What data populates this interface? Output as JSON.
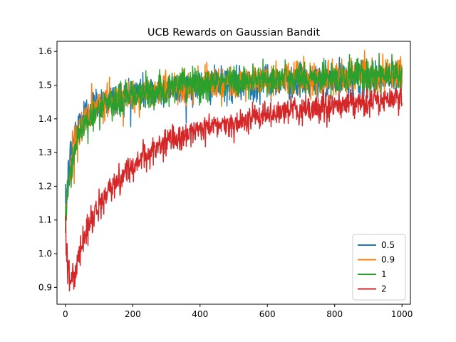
{
  "chart_data": {
    "type": "line",
    "title": "UCB Rewards on Gaussian Bandit",
    "xlabel": "",
    "ylabel": "",
    "xlim": [
      -25,
      1025
    ],
    "ylim": [
      0.85,
      1.63
    ],
    "xticks": [
      0,
      200,
      400,
      600,
      800,
      1000
    ],
    "yticks": [
      0.9,
      1.0,
      1.1,
      1.2,
      1.3,
      1.4,
      1.5,
      1.6
    ],
    "x_tick_labels": [
      "0",
      "200",
      "400",
      "600",
      "800",
      "1000"
    ],
    "y_tick_labels": [
      "0.9",
      "1.0",
      "1.1",
      "1.2",
      "1.3",
      "1.4",
      "1.5",
      "1.6"
    ],
    "grid": false,
    "legend_position": "bottom-right",
    "n_steps": 1000,
    "series": [
      {
        "name": "0.5",
        "color": "#1f77b4",
        "x": [
          0,
          5,
          10,
          20,
          30,
          40,
          50,
          60,
          80,
          100,
          125,
          150,
          175,
          200,
          250,
          300,
          350,
          400,
          450,
          500,
          550,
          600,
          650,
          700,
          750,
          800,
          850,
          900,
          950,
          1000
        ],
        "y": [
          1.11,
          1.2,
          1.24,
          1.32,
          1.36,
          1.39,
          1.41,
          1.42,
          1.44,
          1.45,
          1.46,
          1.46,
          1.47,
          1.48,
          1.48,
          1.49,
          1.49,
          1.5,
          1.5,
          1.5,
          1.5,
          1.51,
          1.51,
          1.51,
          1.51,
          1.51,
          1.52,
          1.52,
          1.52,
          1.52
        ],
        "noise": 0.025
      },
      {
        "name": "0.9",
        "color": "#ff7f0e",
        "x": [
          0,
          5,
          10,
          20,
          30,
          40,
          50,
          60,
          80,
          100,
          125,
          150,
          175,
          200,
          250,
          300,
          350,
          400,
          450,
          500,
          550,
          600,
          650,
          700,
          750,
          800,
          850,
          900,
          950,
          1000
        ],
        "y": [
          1.12,
          1.18,
          1.22,
          1.29,
          1.33,
          1.36,
          1.38,
          1.4,
          1.42,
          1.43,
          1.45,
          1.46,
          1.47,
          1.47,
          1.48,
          1.49,
          1.5,
          1.5,
          1.51,
          1.51,
          1.51,
          1.51,
          1.52,
          1.52,
          1.52,
          1.52,
          1.53,
          1.53,
          1.53,
          1.53
        ],
        "noise": 0.025
      },
      {
        "name": "1",
        "color": "#2ca02c",
        "x": [
          0,
          5,
          10,
          20,
          30,
          40,
          50,
          60,
          80,
          100,
          125,
          150,
          175,
          200,
          250,
          300,
          350,
          400,
          450,
          500,
          550,
          600,
          650,
          700,
          750,
          800,
          850,
          900,
          950,
          1000
        ],
        "y": [
          1.12,
          1.17,
          1.21,
          1.28,
          1.32,
          1.35,
          1.37,
          1.39,
          1.41,
          1.43,
          1.44,
          1.45,
          1.46,
          1.47,
          1.48,
          1.49,
          1.5,
          1.5,
          1.51,
          1.51,
          1.51,
          1.52,
          1.52,
          1.52,
          1.52,
          1.52,
          1.53,
          1.53,
          1.53,
          1.53
        ],
        "noise": 0.025
      },
      {
        "name": "2",
        "color": "#d62728",
        "x": [
          0,
          3,
          6,
          10,
          15,
          20,
          25,
          30,
          40,
          50,
          60,
          75,
          100,
          125,
          150,
          175,
          200,
          250,
          300,
          350,
          400,
          450,
          500,
          550,
          600,
          650,
          700,
          750,
          800,
          850,
          900,
          950,
          1000
        ],
        "y": [
          1.07,
          1.04,
          0.99,
          0.94,
          0.92,
          0.92,
          0.93,
          0.95,
          0.99,
          1.03,
          1.06,
          1.1,
          1.14,
          1.18,
          1.21,
          1.24,
          1.26,
          1.3,
          1.33,
          1.35,
          1.37,
          1.38,
          1.39,
          1.4,
          1.41,
          1.42,
          1.43,
          1.43,
          1.44,
          1.44,
          1.45,
          1.46,
          1.46
        ],
        "noise": 0.02
      }
    ]
  }
}
